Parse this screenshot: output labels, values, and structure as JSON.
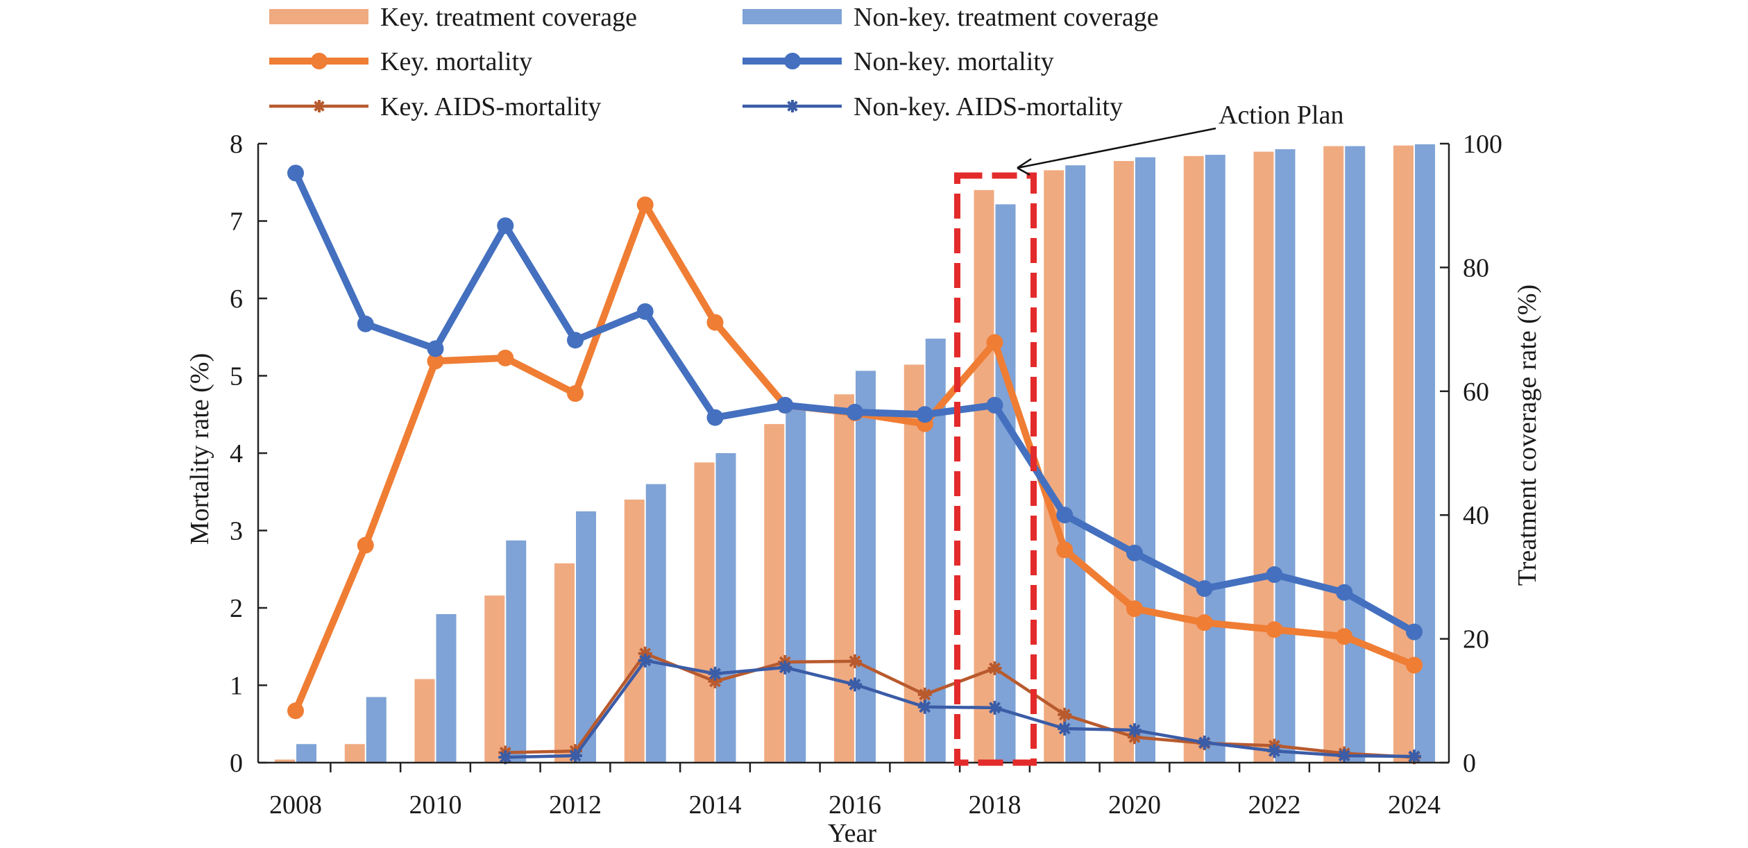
{
  "chart_data": {
    "type": "bar+line",
    "xlabel": "Year",
    "ylabel_left": "Mortality rate (%)",
    "ylabel_right": "Treatment coverage rate (%)",
    "ylim_left": [
      0,
      8
    ],
    "ylim_right": [
      0,
      100
    ],
    "yticks_left": [
      0,
      1,
      2,
      3,
      4,
      5,
      6,
      7,
      8
    ],
    "yticks_right": [
      0,
      20,
      40,
      60,
      80,
      100
    ],
    "x": [
      2008,
      2009,
      2010,
      2011,
      2012,
      2013,
      2014,
      2015,
      2016,
      2017,
      2018,
      2019,
      2020,
      2021,
      2022,
      2023,
      2024
    ],
    "xtick_labels": [
      "2008",
      "2010",
      "2012",
      "2014",
      "2016",
      "2018",
      "2020",
      "2022",
      "2024"
    ],
    "grid": false,
    "legend_position": "top",
    "bar_series": [
      {
        "name": "Key. treatment coverage",
        "color": "#f0aa80",
        "axis": "right",
        "values": [
          0.5,
          3.0,
          13.5,
          27.0,
          32.2,
          42.5,
          48.5,
          54.7,
          59.5,
          64.3,
          92.5,
          95.7,
          97.2,
          98.0,
          98.7,
          99.6,
          99.7
        ]
      },
      {
        "name": "Non-key. treatment coverage",
        "color": "#7fa3d6",
        "axis": "right",
        "values": [
          3.0,
          10.6,
          24.0,
          35.9,
          40.6,
          45.0,
          50.0,
          57.5,
          63.3,
          68.5,
          90.2,
          96.5,
          97.8,
          98.2,
          99.1,
          99.6,
          99.9
        ]
      }
    ],
    "line_series": [
      {
        "name": "Key. mortality",
        "color": "#ef7d34",
        "marker": "circle",
        "axis": "left",
        "values": [
          0.67,
          2.81,
          5.19,
          5.23,
          4.77,
          7.21,
          5.69,
          4.62,
          4.52,
          4.38,
          5.43,
          2.75,
          1.99,
          1.81,
          1.72,
          1.63,
          1.26
        ]
      },
      {
        "name": "Non-key. mortality",
        "color": "#4470bf",
        "marker": "circle",
        "axis": "left",
        "values": [
          7.62,
          5.67,
          5.35,
          6.94,
          5.46,
          5.83,
          4.46,
          4.62,
          4.53,
          4.5,
          4.62,
          3.2,
          2.71,
          2.25,
          2.43,
          2.2,
          1.69
        ]
      },
      {
        "name": "Key. AIDS-mortality",
        "color": "#b85a2e",
        "marker": "star",
        "axis": "left",
        "values": [
          null,
          null,
          null,
          0.13,
          0.15,
          1.41,
          1.05,
          1.3,
          1.31,
          0.88,
          1.22,
          0.62,
          0.33,
          0.25,
          0.22,
          0.12,
          0.07
        ]
      },
      {
        "name": "Non-key. AIDS-mortality",
        "color": "#3b5ca6",
        "marker": "star",
        "axis": "left",
        "values": [
          null,
          null,
          null,
          0.07,
          0.09,
          1.32,
          1.15,
          1.23,
          1.01,
          0.72,
          0.71,
          0.44,
          0.42,
          0.26,
          0.15,
          0.09,
          0.08
        ]
      }
    ],
    "annotations": [
      {
        "text": "Action Plan",
        "target_year": 2018,
        "style": "red dashed box"
      }
    ]
  }
}
